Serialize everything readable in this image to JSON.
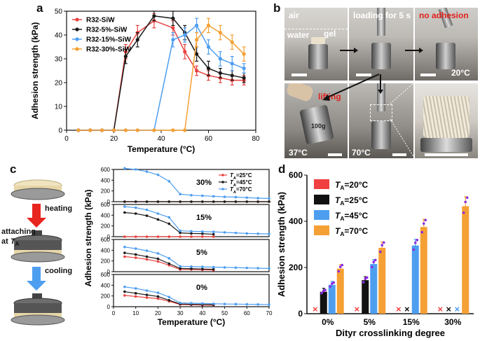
{
  "figure": {
    "panels": {
      "a": "a",
      "b": "b",
      "c": "c",
      "d": "d"
    }
  },
  "photos": {
    "labels": {
      "air": "air",
      "water": "water",
      "gel": "gel",
      "loading": "loading for 5 s",
      "no_adhesion": "no adhesion",
      "t20": "20°C",
      "lifting": "lifting",
      "weight": "100g",
      "t37": "37°C",
      "t70": "70°C"
    }
  },
  "schematic": {
    "heating": "heating",
    "attaching": "attaching",
    "at": "at ",
    "ta_main": "T",
    "ta_sub": "A",
    "cooling": "cooling"
  },
  "chart_data": [
    {
      "id": "a",
      "type": "line",
      "xlabel": "Temperature (°C)",
      "ylabel": "Adhesion strength (kPa)",
      "xlim": [
        0,
        80
      ],
      "ylim": [
        0,
        50
      ],
      "xticks": [
        0,
        20,
        40,
        60,
        80
      ],
      "yticks": [
        0,
        10,
        20,
        30,
        40,
        50
      ],
      "legend_position": "top-left",
      "series": [
        {
          "name": "R32-SiW",
          "color": "#e8423f",
          "x": [
            5,
            10,
            15,
            20,
            25,
            30,
            37,
            45,
            50,
            55,
            60,
            65,
            70,
            75
          ],
          "y": [
            0,
            0,
            0,
            0,
            33,
            41,
            46,
            43,
            33,
            25,
            23,
            22,
            21,
            21
          ],
          "err": [
            0,
            0,
            0,
            0,
            3,
            3,
            3,
            3,
            3,
            2,
            2,
            2,
            2,
            2
          ]
        },
        {
          "name": "R32-5%-SiW",
          "color": "#1a1a1a",
          "x": [
            5,
            10,
            15,
            20,
            25,
            30,
            37,
            45,
            50,
            55,
            60,
            65,
            70,
            75
          ],
          "y": [
            0,
            0,
            0,
            0,
            31,
            38,
            48,
            47,
            41,
            32,
            26,
            24,
            23,
            22
          ],
          "err": [
            0,
            0,
            0,
            0,
            3,
            3,
            2,
            3,
            3,
            3,
            3,
            2,
            2,
            2
          ]
        },
        {
          "name": "R32-15%-SiW",
          "color": "#4e9ef0",
          "x": [
            5,
            10,
            15,
            20,
            25,
            30,
            37,
            45,
            50,
            55,
            60,
            65,
            70,
            75
          ],
          "y": [
            0,
            0,
            0,
            0,
            0,
            0,
            0,
            38,
            40,
            44,
            35,
            30,
            28,
            26
          ],
          "err": [
            0,
            0,
            0,
            0,
            0,
            0,
            0,
            3,
            3,
            3,
            3,
            3,
            3,
            2
          ]
        },
        {
          "name": "R32-30%-SiW",
          "color": "#f5a034",
          "x": [
            5,
            10,
            15,
            20,
            25,
            30,
            37,
            45,
            50,
            55,
            60,
            65,
            70,
            75
          ],
          "y": [
            0,
            0,
            0,
            0,
            0,
            0,
            0,
            0,
            0,
            38,
            44,
            41,
            37,
            32
          ],
          "err": [
            0,
            0,
            0,
            0,
            0,
            0,
            0,
            0,
            0,
            3,
            3,
            3,
            3,
            3
          ]
        }
      ]
    },
    {
      "id": "c",
      "type": "line",
      "xlabel": "Temperature (°C)",
      "ylabel": "Adhesion strength (kPa)",
      "x": [
        5,
        10,
        15,
        20,
        25,
        30,
        35,
        40,
        45,
        50,
        55,
        60,
        65,
        70
      ],
      "xlim": [
        0,
        70
      ],
      "xticks": [
        0,
        10,
        20,
        30,
        40,
        50,
        60,
        70
      ],
      "legend": [
        {
          "name": "TA=25°C",
          "t": "T",
          "sub": "A",
          "rest": "=25°C",
          "color": "#e8423f"
        },
        {
          "name": "TA=45°C",
          "t": "T",
          "sub": "A",
          "rest": "=45°C",
          "color": "#1a1a1a"
        },
        {
          "name": "TA=70°C",
          "t": "T",
          "sub": "A",
          "rest": "=70°C",
          "color": "#4e9ef0"
        }
      ],
      "subplots": [
        {
          "label": "30%",
          "ylim": [
            0,
            600
          ],
          "yticks": [
            0,
            200,
            400,
            600
          ],
          "series": [
            {
              "name": "TA=25°C",
              "color": "#e8423f",
              "y": [
                0,
                0,
                0,
                0,
                0,
                0,
                0,
                0,
                0,
                0,
                0,
                0,
                0,
                0
              ]
            },
            {
              "name": "TA=45°C",
              "color": "#1a1a1a",
              "y": [
                0,
                0,
                0,
                0,
                0,
                0,
                0,
                0,
                0,
                0,
                0,
                0,
                0,
                0
              ]
            },
            {
              "name": "TA=70°C",
              "color": "#4e9ef0",
              "y": [
                620,
                600,
                560,
                500,
                380,
                140,
                120,
                110,
                100,
                90,
                85,
                75,
                65,
                60
              ]
            }
          ]
        },
        {
          "label": "15%",
          "ylim": [
            0,
            600
          ],
          "yticks": [
            0,
            200,
            400,
            600
          ],
          "series": [
            {
              "name": "TA=25°C",
              "color": "#e8423f",
              "y": [
                0,
                0,
                0,
                0,
                0,
                0,
                0,
                0,
                0
              ]
            },
            {
              "name": "TA=45°C",
              "color": "#1a1a1a",
              "y": [
                450,
                430,
                390,
                320,
                240,
                70,
                60,
                55,
                45
              ]
            },
            {
              "name": "TA=70°C",
              "color": "#4e9ef0",
              "y": [
                560,
                540,
                500,
                430,
                360,
                110,
                100,
                95,
                90,
                80,
                70,
                60,
                55,
                50
              ]
            }
          ]
        },
        {
          "label": "5%",
          "ylim": [
            0,
            600
          ],
          "yticks": [
            0,
            200,
            400,
            600
          ],
          "series": [
            {
              "name": "TA=25°C",
              "color": "#e8423f",
              "y": [
                280,
                260,
                230,
                190,
                120,
                40,
                40,
                35,
                30
              ]
            },
            {
              "name": "TA=45°C",
              "color": "#1a1a1a",
              "y": [
                350,
                320,
                280,
                240,
                150,
                60,
                55,
                50,
                45
              ]
            },
            {
              "name": "TA=70°C",
              "color": "#4e9ef0",
              "y": [
                460,
                430,
                390,
                340,
                250,
                100,
                95,
                90,
                85,
                80,
                75,
                70,
                65,
                60
              ]
            }
          ]
        },
        {
          "label": "0%",
          "ylim": [
            0,
            600
          ],
          "yticks": [
            0,
            200,
            400,
            600
          ],
          "series": [
            {
              "name": "TA=25°C",
              "color": "#e8423f",
              "y": [
                210,
                190,
                170,
                150,
                100,
                40,
                35,
                30,
                28
              ]
            },
            {
              "name": "TA=45°C",
              "color": "#1a1a1a",
              "y": [
                280,
                250,
                220,
                190,
                120,
                50,
                45,
                40,
                38
              ]
            },
            {
              "name": "TA=70°C",
              "color": "#4e9ef0",
              "y": [
                370,
                340,
                300,
                260,
                180,
                70,
                65,
                60,
                55,
                50,
                48,
                45,
                42,
                40
              ]
            }
          ]
        }
      ]
    },
    {
      "id": "d",
      "type": "bar",
      "xlabel": "Dityr crosslinking degree",
      "ylabel": "Adhesion strength (kPa)",
      "categories": [
        "0%",
        "5%",
        "15%",
        "30%"
      ],
      "ylim": [
        0,
        600
      ],
      "yticks": [
        0,
        200,
        400,
        600
      ],
      "legend_position": "top-left",
      "no_adhesion_marker": "×",
      "series": [
        {
          "name": "TA=20°C",
          "t": "T",
          "sub": "A",
          "rest": "=20°C",
          "color": "#f04040",
          "values": [
            0,
            0,
            0,
            0
          ]
        },
        {
          "name": "TA=25°C",
          "t": "T",
          "sub": "A",
          "rest": "=25°C",
          "color": "#111111",
          "values": [
            95,
            145,
            0,
            0
          ]
        },
        {
          "name": "TA=45°C",
          "t": "T",
          "sub": "A",
          "rest": "=45°C",
          "color": "#4e9ef0",
          "values": [
            125,
            215,
            295,
            0
          ]
        },
        {
          "name": "TA=70°C",
          "t": "T",
          "sub": "A",
          "rest": "=70°C",
          "color": "#f5a034",
          "values": [
            195,
            285,
            375,
            465
          ]
        }
      ]
    }
  ]
}
